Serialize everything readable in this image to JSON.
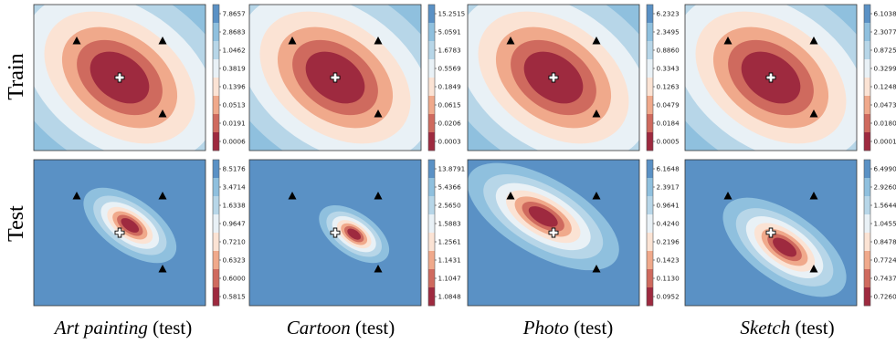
{
  "figure": {
    "row_labels": [
      "Train",
      "Test"
    ],
    "columns": [
      {
        "domain": "Art painting",
        "suffix": " (test)"
      },
      {
        "domain": "Cartoon",
        "suffix": " (test)"
      },
      {
        "domain": "Photo",
        "suffix": " (test)"
      },
      {
        "domain": "Sketch",
        "suffix": " (test)"
      }
    ]
  },
  "colorbar_palette": [
    "#9e2a3f",
    "#cf6a5e",
    "#f0a98b",
    "#fbe3d4",
    "#e9f1f6",
    "#b7d6e8",
    "#8fc0de",
    "#5a91c5"
  ],
  "chart_data": [
    {
      "type": "heatmap",
      "row": "Train",
      "column": "Art painting",
      "colorbar_ticks": [
        "7.8657",
        "2.8683",
        "1.0462",
        "0.3819",
        "0.1396",
        "0.0513",
        "0.0191",
        "0.0006"
      ],
      "min_marker": [
        0.5,
        0.5
      ],
      "triangles": [
        [
          0.25,
          0.25
        ],
        [
          0.75,
          0.25
        ],
        [
          0.75,
          0.75
        ]
      ],
      "contour": {
        "center": [
          0.5,
          0.5
        ],
        "angle_deg": 35,
        "rx": 0.19,
        "ry": 0.15
      }
    },
    {
      "type": "heatmap",
      "row": "Train",
      "column": "Cartoon",
      "colorbar_ticks": [
        "15.2515",
        "5.0591",
        "1.6783",
        "0.5569",
        "0.1849",
        "0.0615",
        "0.0206",
        "0.0003"
      ],
      "min_marker": [
        0.5,
        0.5
      ],
      "triangles": [
        [
          0.25,
          0.25
        ],
        [
          0.75,
          0.25
        ],
        [
          0.75,
          0.75
        ]
      ],
      "contour": {
        "center": [
          0.5,
          0.5
        ],
        "angle_deg": 35,
        "rx": 0.19,
        "ry": 0.15
      }
    },
    {
      "type": "heatmap",
      "row": "Train",
      "column": "Photo",
      "colorbar_ticks": [
        "6.2323",
        "2.3495",
        "0.8860",
        "0.3343",
        "0.1263",
        "0.0479",
        "0.0184",
        "0.0005"
      ],
      "min_marker": [
        0.5,
        0.5
      ],
      "triangles": [
        [
          0.25,
          0.25
        ],
        [
          0.75,
          0.25
        ],
        [
          0.75,
          0.75
        ]
      ],
      "contour": {
        "center": [
          0.5,
          0.5
        ],
        "angle_deg": 35,
        "rx": 0.19,
        "ry": 0.15
      }
    },
    {
      "type": "heatmap",
      "row": "Train",
      "column": "Sketch",
      "colorbar_ticks": [
        "6.1038",
        "2.3077",
        "0.8725",
        "0.3299",
        "0.1248",
        "0.0473",
        "0.0180",
        "0.0001"
      ],
      "min_marker": [
        0.5,
        0.5
      ],
      "triangles": [
        [
          0.25,
          0.25
        ],
        [
          0.75,
          0.25
        ],
        [
          0.75,
          0.75
        ]
      ],
      "contour": {
        "center": [
          0.5,
          0.5
        ],
        "angle_deg": 35,
        "rx": 0.19,
        "ry": 0.15
      }
    },
    {
      "type": "heatmap",
      "row": "Test",
      "column": "Art painting",
      "colorbar_ticks": [
        "8.5176",
        "3.4714",
        "1.6338",
        "0.9647",
        "0.7210",
        "0.6323",
        "0.6000",
        "0.5815"
      ],
      "min_marker": [
        0.5,
        0.5
      ],
      "triangles": [
        [
          0.25,
          0.25
        ],
        [
          0.75,
          0.25
        ],
        [
          0.75,
          0.75
        ]
      ],
      "contour": {
        "center": [
          0.56,
          0.45
        ],
        "angle_deg": 35,
        "rx": 0.06,
        "ry": 0.035
      }
    },
    {
      "type": "heatmap",
      "row": "Test",
      "column": "Cartoon",
      "colorbar_ticks": [
        "13.8791",
        "5.4366",
        "2.5650",
        "1.5883",
        "1.2561",
        "1.1431",
        "1.1047",
        "1.0848"
      ],
      "min_marker": [
        0.5,
        0.5
      ],
      "triangles": [
        [
          0.25,
          0.25
        ],
        [
          0.75,
          0.25
        ],
        [
          0.75,
          0.75
        ]
      ],
      "contour": {
        "center": [
          0.61,
          0.51
        ],
        "angle_deg": 35,
        "rx": 0.045,
        "ry": 0.028
      }
    },
    {
      "type": "heatmap",
      "row": "Test",
      "column": "Photo",
      "colorbar_ticks": [
        "6.1648",
        "2.3917",
        "0.9641",
        "0.4240",
        "0.2196",
        "0.1423",
        "0.1130",
        "0.0952"
      ],
      "min_marker": [
        0.5,
        0.5
      ],
      "triangles": [
        [
          0.25,
          0.25
        ],
        [
          0.75,
          0.25
        ],
        [
          0.75,
          0.75
        ]
      ],
      "contour": {
        "center": [
          0.44,
          0.39
        ],
        "angle_deg": 30,
        "rx": 0.095,
        "ry": 0.05
      }
    },
    {
      "type": "heatmap",
      "row": "Test",
      "column": "Sketch",
      "colorbar_ticks": [
        "6.4990",
        "2.9260",
        "1.5644",
        "1.0455",
        "0.8478",
        "0.7724",
        "0.7437",
        "0.7260"
      ],
      "min_marker": [
        0.5,
        0.5
      ],
      "triangles": [
        [
          0.25,
          0.25
        ],
        [
          0.75,
          0.25
        ],
        [
          0.75,
          0.75
        ]
      ],
      "contour": {
        "center": [
          0.58,
          0.6
        ],
        "angle_deg": 35,
        "rx": 0.08,
        "ry": 0.045
      }
    }
  ]
}
